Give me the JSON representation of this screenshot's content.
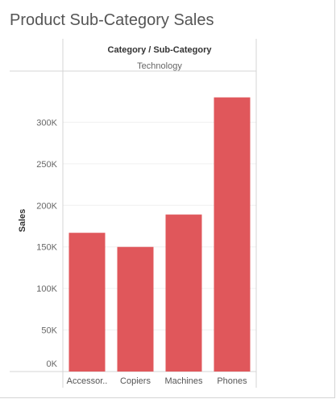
{
  "title": "Product Sub-Category Sales",
  "header": {
    "dimension_label": "Category / Sub-Category",
    "category": "Technology"
  },
  "colors": {
    "bar": "#e0575b",
    "grid": "#f0f0f0",
    "rule": "#d4d4d4"
  },
  "chart_data": {
    "type": "bar",
    "title": "Product Sub-Category Sales",
    "ylabel": "Sales",
    "xlabel": "",
    "categories": [
      "Accessor..",
      "Copiers",
      "Machines",
      "Phones"
    ],
    "values": [
      167000,
      150000,
      189000,
      330000
    ],
    "ylim": [
      0,
      350000
    ],
    "yticks": [
      0,
      50000,
      100000,
      150000,
      200000,
      250000,
      300000
    ],
    "ytick_labels": [
      "0K",
      "50K",
      "100K",
      "150K",
      "200K",
      "250K",
      "300K"
    ],
    "grid": true,
    "legend": "none"
  }
}
